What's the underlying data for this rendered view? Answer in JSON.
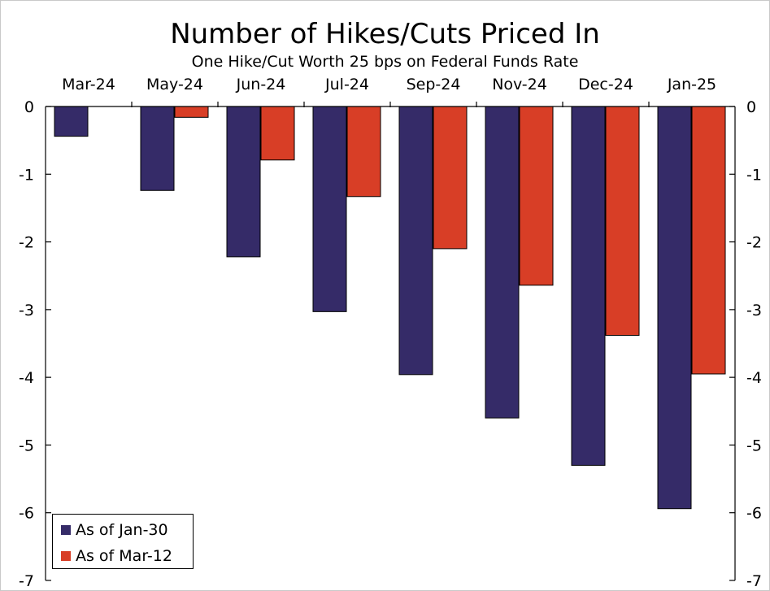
{
  "chart_data": {
    "type": "bar",
    "title": "Number of Hikes/Cuts Priced In",
    "subtitle": "One Hike/Cut Worth 25 bps on Federal Funds Rate",
    "categories": [
      "Mar-24",
      "May-24",
      "Jun-24",
      "Jul-24",
      "Sep-24",
      "Nov-24",
      "Dec-24",
      "Jan-25"
    ],
    "series": [
      {
        "name": "As of Jan-30",
        "color": "#352b68",
        "values": [
          -0.44,
          -1.24,
          -2.22,
          -3.03,
          -3.96,
          -4.6,
          -5.3,
          -5.94
        ]
      },
      {
        "name": "As of Mar-12",
        "color": "#d83e26",
        "values": [
          null,
          -0.16,
          -0.79,
          -1.33,
          -2.1,
          -2.64,
          -3.38,
          -3.95
        ]
      }
    ],
    "ylim": [
      -7,
      0
    ],
    "yticks": [
      "0",
      "-1",
      "-2",
      "-3",
      "-4",
      "-5",
      "-6",
      "-7"
    ],
    "xlabel": "",
    "ylabel": "",
    "legend_position": "bottom-left",
    "grid": false
  }
}
